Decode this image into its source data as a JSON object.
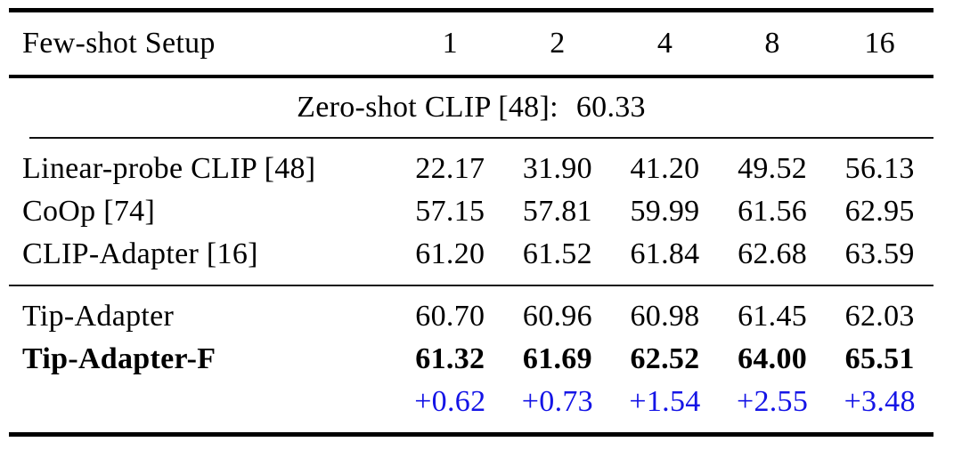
{
  "page": {
    "background": "#ffffff"
  },
  "colors": {
    "text": "#000000",
    "rule": "#000000",
    "delta_blue": "#1414e6"
  },
  "table": {
    "header": {
      "label": "Few-shot Setup",
      "shots": [
        "1",
        "2",
        "4",
        "8",
        "16"
      ]
    },
    "zero_shot": {
      "label": "Zero-shot CLIP [48]:",
      "value": "60.33"
    },
    "baseline_rows": [
      {
        "label": "Linear-probe CLIP [48]",
        "values": [
          "22.17",
          "31.90",
          "41.20",
          "49.52",
          "56.13"
        ]
      },
      {
        "label": "CoOp [74]",
        "values": [
          "57.15",
          "57.81",
          "59.99",
          "61.56",
          "62.95"
        ]
      },
      {
        "label": "CLIP-Adapter [16]",
        "values": [
          "61.20",
          "61.52",
          "61.84",
          "62.68",
          "63.59"
        ]
      }
    ],
    "tip_rows": [
      {
        "label": "Tip-Adapter",
        "values": [
          "60.70",
          "60.96",
          "60.98",
          "61.45",
          "62.03"
        ]
      },
      {
        "label": "Tip-Adapter-F",
        "values": [
          "61.32",
          "61.69",
          "62.52",
          "64.00",
          "65.51"
        ]
      },
      {
        "label": "",
        "values": [
          "+0.62",
          "+0.73",
          "+1.54",
          "+2.55",
          "+3.48"
        ]
      }
    ]
  }
}
